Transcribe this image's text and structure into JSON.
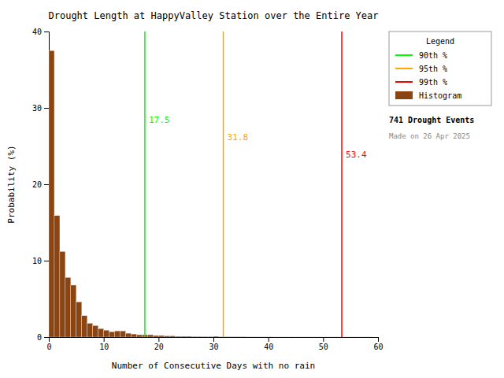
{
  "chart_data": {
    "type": "histogram",
    "title": "Drought Length at HappyValley Station over the Entire Year",
    "x_label": "Number of Consecutive Days with no rain",
    "y_label": "Probability (%)",
    "name": "Histogram",
    "color": "#8B4513",
    "bins": [
      0,
      1,
      2,
      3,
      4,
      5,
      6,
      7,
      8,
      9,
      10,
      11,
      12,
      13,
      14,
      15,
      16,
      17,
      18,
      19,
      20,
      21,
      22,
      23,
      24,
      25,
      26,
      27,
      28,
      29,
      30,
      31,
      32,
      33,
      34,
      35,
      36,
      37,
      38,
      39,
      40,
      41,
      42,
      43,
      44,
      45,
      46,
      47,
      48,
      49,
      50,
      51,
      52,
      53,
      54,
      55,
      56,
      57,
      58,
      59
    ],
    "values": [
      37.5,
      15.9,
      11.2,
      7.8,
      6.8,
      4.6,
      2.8,
      1.8,
      1.5,
      1.1,
      0.9,
      0.7,
      0.8,
      0.8,
      0.5,
      0.4,
      0.3,
      0.3,
      0.3,
      0.2,
      0.2,
      0.15,
      0.15,
      0.1,
      0.1,
      0.1,
      0.08,
      0.08,
      0.07,
      0.07,
      0.1,
      0.05,
      0.05,
      0.05,
      0.05,
      0.05,
      0.03,
      0.03,
      0.03,
      0.03,
      0.03,
      0.02,
      0.02,
      0.02,
      0.02,
      0.02,
      0.02,
      0.02,
      0.02,
      0.02,
      0.02,
      0.02,
      0.02,
      0.02,
      0.02,
      0.02,
      0.02,
      0.02,
      0.02
    ],
    "xlim": [
      0,
      60
    ],
    "ylim": [
      0,
      40
    ],
    "xticks": [
      0,
      10,
      20,
      30,
      40,
      50,
      60
    ],
    "yticks": [
      0,
      10,
      20,
      30,
      40
    ],
    "vlines": [
      {
        "name": "90th %",
        "x": 17.5,
        "color": "#00ff00"
      },
      {
        "name": "95th %",
        "x": 31.8,
        "color": "#ffa500"
      },
      {
        "name": "99th %",
        "x": 53.4,
        "color": "#ff0000"
      }
    ],
    "legend": "right",
    "legend_title": "Legend",
    "annotations": [
      "741 Drought Events",
      "Made on 26 Apr 2025"
    ]
  }
}
